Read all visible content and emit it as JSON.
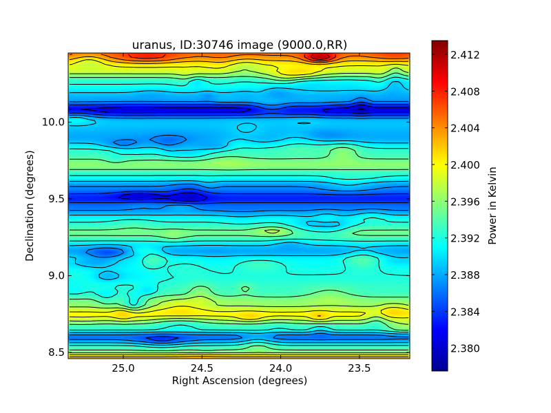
{
  "chart_data": {
    "type": "heatmap",
    "title": "uranus, ID:30746 image (9000.0,RR)",
    "xlabel": "Right Ascension (degrees)",
    "ylabel": "Declination (degrees)",
    "xlim": [
      25.35,
      23.18
    ],
    "ylim": [
      8.46,
      10.45
    ],
    "x_inverted": true,
    "x_ticks": [
      25.0,
      24.5,
      24.0,
      23.5
    ],
    "x_tick_labels": [
      "25.0",
      "24.5",
      "24.0",
      "23.5"
    ],
    "y_ticks": [
      8.5,
      9.0,
      9.5,
      10.0
    ],
    "y_tick_labels": [
      "8.5",
      "9.0",
      "9.5",
      "10.0"
    ],
    "colormap": "jet",
    "contours": true,
    "colorbar": {
      "label": "Power in Kelvin",
      "range": [
        2.3775,
        2.4135
      ],
      "ticks": [
        2.38,
        2.384,
        2.388,
        2.392,
        2.396,
        2.4,
        2.404,
        2.408,
        2.412
      ],
      "tick_labels": [
        "2.380",
        "2.384",
        "2.388",
        "2.392",
        "2.396",
        "2.400",
        "2.404",
        "2.408",
        "2.412"
      ]
    },
    "dec_profile": {
      "dec": [
        8.46,
        8.52,
        8.6,
        8.66,
        8.75,
        8.82,
        8.9,
        9.0,
        9.1,
        9.16,
        9.28,
        9.35,
        9.45,
        9.5,
        9.58,
        9.65,
        9.72,
        9.8,
        9.9,
        10.0,
        10.08,
        10.15,
        10.25,
        10.35,
        10.45
      ],
      "power": [
        2.403,
        2.394,
        2.386,
        2.393,
        2.4,
        2.396,
        2.393,
        2.392,
        2.391,
        2.388,
        2.395,
        2.392,
        2.386,
        2.383,
        2.387,
        2.392,
        2.396,
        2.393,
        2.388,
        2.389,
        2.381,
        2.388,
        2.392,
        2.399,
        2.405
      ]
    },
    "peak": {
      "ra": 23.75,
      "dec": 10.42,
      "power": 2.413
    }
  }
}
